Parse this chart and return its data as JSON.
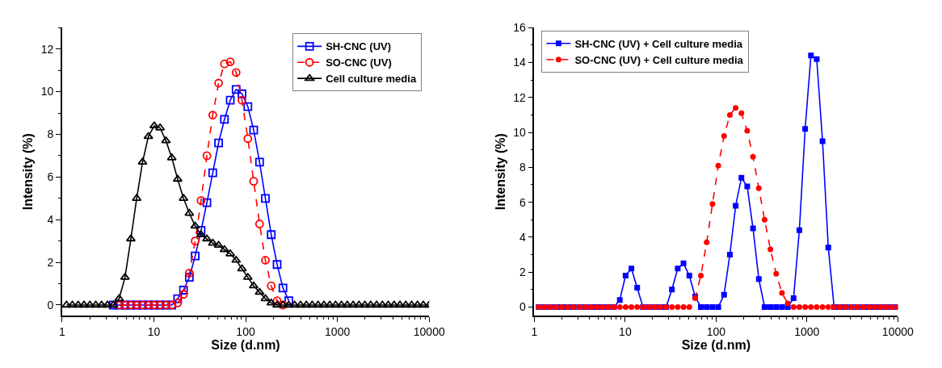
{
  "chart_data": [
    {
      "type": "line",
      "xlabel": "Size (d.nm)",
      "ylabel": "Intensity (%)",
      "log": "x",
      "xlim": [
        1,
        10000
      ],
      "xticks": [
        1,
        10,
        100,
        1000,
        10000
      ],
      "ylim": [
        -0.5,
        13
      ],
      "yticks": [
        0,
        2,
        4,
        6,
        8,
        10,
        12
      ],
      "legend": "top right",
      "x": [
        1.117,
        1.294,
        1.499,
        1.736,
        2.01,
        2.328,
        2.696,
        3.122,
        3.615,
        4.187,
        4.849,
        5.615,
        6.503,
        7.531,
        8.721,
        10.1,
        11.7,
        13.54,
        15.69,
        18.17,
        21.04,
        24.36,
        28.21,
        32.67,
        37.84,
        43.82,
        50.75,
        58.77,
        68.06,
        78.82,
        91.28,
        105.7,
        122.4,
        141.8,
        164.2,
        190.1,
        220.2,
        255.0,
        295.3,
        342.0,
        396.1,
        458.7,
        531.2,
        615.1,
        712.4,
        825.0,
        955.4,
        1106,
        1281,
        1484,
        1718,
        1990,
        2305,
        2669,
        3091,
        3580,
        4145,
        4801,
        5560,
        6439,
        7456,
        8635,
        10000
      ],
      "series": [
        {
          "name": "SH-CNC (UV)",
          "color": "#0000ff",
          "marker": "square",
          "line_style": "solid",
          "values": [
            null,
            null,
            null,
            null,
            null,
            null,
            null,
            null,
            0,
            0,
            0,
            0,
            0,
            0,
            0,
            0,
            0,
            0,
            0,
            0.3,
            0.7,
            1.3,
            2.3,
            3.5,
            4.8,
            6.2,
            7.6,
            8.7,
            9.6,
            10.1,
            9.9,
            9.3,
            8.2,
            6.7,
            5.0,
            3.3,
            1.9,
            0.8,
            0.2,
            null,
            null,
            null,
            null,
            null,
            null,
            null,
            null,
            null,
            null,
            null,
            null,
            null,
            null,
            null,
            null,
            null,
            null,
            null,
            null,
            null,
            null,
            null,
            null
          ]
        },
        {
          "name": "SO-CNC (UV)",
          "color": "#ff0000",
          "marker": "circle",
          "line_style": "dashed",
          "values": [
            null,
            null,
            null,
            null,
            null,
            null,
            null,
            null,
            null,
            0,
            0,
            0,
            0,
            0,
            0,
            0,
            0,
            0,
            0,
            0.1,
            0.5,
            1.5,
            3.0,
            4.9,
            7.0,
            8.9,
            10.4,
            11.3,
            11.4,
            10.9,
            9.6,
            7.8,
            5.8,
            3.8,
            2.1,
            0.9,
            0.2,
            0,
            null,
            null,
            null,
            null,
            null,
            null,
            null,
            null,
            null,
            null,
            null,
            null,
            null,
            null,
            null,
            null,
            null,
            null,
            null,
            null,
            null,
            null,
            null,
            null,
            null
          ]
        },
        {
          "name": "Cell culture media",
          "color": "#000000",
          "marker": "triangle",
          "line_style": "solid",
          "values": [
            0,
            0,
            0,
            0,
            0,
            0,
            0,
            0,
            0,
            0.3,
            1.3,
            3.1,
            5.0,
            6.7,
            7.9,
            8.4,
            8.3,
            7.7,
            6.9,
            5.9,
            5.0,
            4.3,
            3.7,
            3.3,
            3.1,
            2.9,
            2.8,
            2.6,
            2.4,
            2.1,
            1.7,
            1.3,
            0.9,
            0.6,
            0.3,
            0.1,
            0,
            0,
            0,
            0,
            0,
            0,
            0,
            0,
            0,
            0,
            0,
            0,
            0,
            0,
            0,
            0,
            0,
            0,
            0,
            0,
            0,
            0,
            0,
            0,
            0,
            0,
            0
          ]
        }
      ]
    },
    {
      "type": "line",
      "xlabel": "Size (d.nm)",
      "ylabel": "Intensity (%)",
      "log": "x",
      "xlim": [
        1,
        10000
      ],
      "xticks": [
        1,
        10,
        100,
        1000,
        10000
      ],
      "ylim": [
        -0.5,
        16
      ],
      "yticks": [
        0,
        2,
        4,
        6,
        8,
        10,
        12,
        14,
        16
      ],
      "legend": "top left",
      "x": [
        1.117,
        1.294,
        1.499,
        1.736,
        2.01,
        2.328,
        2.696,
        3.122,
        3.615,
        4.187,
        4.849,
        5.615,
        6.503,
        7.531,
        8.721,
        10.1,
        11.7,
        13.54,
        15.69,
        18.17,
        21.04,
        24.36,
        28.21,
        32.67,
        37.84,
        43.82,
        50.75,
        58.77,
        68.06,
        78.82,
        91.28,
        105.7,
        122.4,
        141.8,
        164.2,
        190.1,
        220.2,
        255.0,
        295.3,
        342.0,
        396.1,
        458.7,
        531.2,
        615.1,
        712.4,
        825.0,
        955.4,
        1106,
        1281,
        1484,
        1718,
        1990,
        2305,
        2669,
        3091,
        3580,
        4145,
        4801,
        5560,
        6439,
        7456,
        8635,
        10000
      ],
      "series": [
        {
          "name": "SH-CNC (UV) + Cell culture media",
          "color": "#0000ff",
          "marker": "square",
          "line_style": "solid",
          "values": [
            0,
            0,
            0,
            0,
            0,
            0,
            0,
            0,
            0,
            0,
            0,
            0,
            0,
            0,
            0.4,
            1.8,
            2.2,
            1.1,
            0,
            0,
            0,
            0,
            0,
            1.0,
            2.2,
            2.5,
            1.8,
            0.6,
            0,
            0,
            0,
            0,
            0.7,
            3.0,
            5.8,
            7.4,
            6.9,
            4.5,
            1.6,
            0,
            0,
            0,
            0,
            0,
            0.5,
            4.4,
            10.2,
            14.4,
            14.2,
            9.5,
            3.4,
            0,
            0,
            0,
            0,
            0,
            0,
            0,
            0,
            0,
            0,
            0,
            0
          ]
        },
        {
          "name": "SO-CNC (UV) + Cell culture media",
          "color": "#ff0000",
          "marker": "circle",
          "line_style": "dashed",
          "values": [
            0,
            0,
            0,
            0,
            0,
            0,
            0,
            0,
            0,
            0,
            0,
            0,
            0,
            0,
            0,
            0,
            0,
            0,
            0,
            0,
            0,
            0,
            0,
            0,
            0,
            0,
            0,
            0.5,
            1.8,
            3.7,
            5.9,
            8.1,
            9.8,
            11.0,
            11.4,
            11.1,
            10.1,
            8.6,
            6.8,
            5.0,
            3.3,
            1.9,
            0.8,
            0.2,
            0,
            0,
            0,
            0,
            0,
            0,
            0,
            0,
            0,
            0,
            0,
            0,
            0,
            0,
            0,
            0,
            0,
            0,
            0
          ]
        }
      ]
    }
  ]
}
